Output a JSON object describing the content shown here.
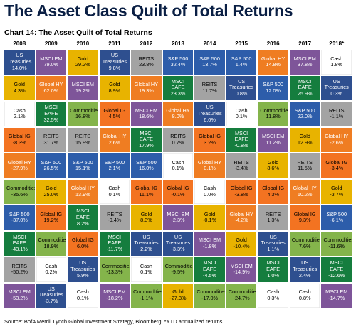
{
  "title": "The Asset Class Quilt of Total Returns",
  "subtitle": "Chart 14: The Asset Quilt of Total Returns",
  "source": "Source: BofA Merrill Lynch Global Investment Strategy, Bloomberg. *YTD annualized returns",
  "colors": {
    "US Treasuries": "#2e4f8f",
    "MSCI EM": "#7e5599",
    "Gold": "#e8b300",
    "Cash": "#ffffff",
    "Global IG": "#f37321",
    "Global HY": "#ef7d22",
    "REITS": "#a3a3a3",
    "S&P 500": "#2d5daa",
    "MSCI EAFE": "#157d3e",
    "Commodities": "#84b44b"
  },
  "chart_data": {
    "type": "table",
    "years": [
      "2008",
      "2009",
      "2010",
      "2011",
      "2012",
      "2013",
      "2014",
      "2015",
      "2016",
      "2017",
      "2018*"
    ],
    "columns": [
      [
        {
          "asset": "US Treasuries",
          "ret": "14.0%"
        },
        {
          "asset": "Gold",
          "ret": "4.3%"
        },
        {
          "asset": "Cash",
          "ret": "2.1%"
        },
        {
          "asset": "Global IG",
          "ret": "-8.3%"
        },
        {
          "asset": "Global HY",
          "ret": "-27.9%"
        },
        {
          "asset": "Commodities",
          "ret": "-35.6%"
        },
        {
          "asset": "S&P 500",
          "ret": "-37.0%"
        },
        {
          "asset": "MSCI EAFE",
          "ret": "-43.1%"
        },
        {
          "asset": "REITS",
          "ret": "-50.2%"
        },
        {
          "asset": "MSCI EM",
          "ret": "-53.2%"
        }
      ],
      [
        {
          "asset": "MSCI EM",
          "ret": "79.0%"
        },
        {
          "asset": "Global HY",
          "ret": "62.0%"
        },
        {
          "asset": "MSCI EAFE",
          "ret": "32.5%"
        },
        {
          "asset": "REITS",
          "ret": "31.7%"
        },
        {
          "asset": "S&P 500",
          "ret": "26.5%"
        },
        {
          "asset": "Gold",
          "ret": "25.0%"
        },
        {
          "asset": "Global IG",
          "ret": "19.2%"
        },
        {
          "asset": "Commodities",
          "ret": "18.9%"
        },
        {
          "asset": "Cash",
          "ret": "0.2%"
        },
        {
          "asset": "US Treasuries",
          "ret": "-3.7%"
        }
      ],
      [
        {
          "asset": "Gold",
          "ret": "29.2%"
        },
        {
          "asset": "MSCI EM",
          "ret": "19.2%"
        },
        {
          "asset": "Commodities",
          "ret": "16.8%"
        },
        {
          "asset": "REITS",
          "ret": "15.9%"
        },
        {
          "asset": "S&P 500",
          "ret": "15.1%"
        },
        {
          "asset": "Global HY",
          "ret": "13.9%"
        },
        {
          "asset": "MSCI EAFE",
          "ret": "8.2%"
        },
        {
          "asset": "Global IG",
          "ret": "6.0%"
        },
        {
          "asset": "US Treasuries",
          "ret": "5.9%"
        },
        {
          "asset": "Cash",
          "ret": "0.1%"
        }
      ],
      [
        {
          "asset": "US Treasuries",
          "ret": "9.8%"
        },
        {
          "asset": "Gold",
          "ret": "8.9%"
        },
        {
          "asset": "Global IG",
          "ret": "4.5%"
        },
        {
          "asset": "Global HY",
          "ret": "2.6%"
        },
        {
          "asset": "S&P 500",
          "ret": "2.1%"
        },
        {
          "asset": "Cash",
          "ret": "0.1%"
        },
        {
          "asset": "REITS",
          "ret": "-9.4%"
        },
        {
          "asset": "MSCI EAFE",
          "ret": "-11.7%"
        },
        {
          "asset": "Commodities",
          "ret": "-13.3%"
        },
        {
          "asset": "MSCI EM",
          "ret": "-18.2%"
        }
      ],
      [
        {
          "asset": "REITS",
          "ret": "23.8%"
        },
        {
          "asset": "Global HY",
          "ret": "19.3%"
        },
        {
          "asset": "MSCI EM",
          "ret": "18.6%"
        },
        {
          "asset": "MSCI EAFE",
          "ret": "17.9%"
        },
        {
          "asset": "S&P 500",
          "ret": "16.0%"
        },
        {
          "asset": "Global IG",
          "ret": "11.1%"
        },
        {
          "asset": "Gold",
          "ret": "8.3%"
        },
        {
          "asset": "US Treasuries",
          "ret": "2.2%"
        },
        {
          "asset": "Cash",
          "ret": "0.1%"
        },
        {
          "asset": "Commodities",
          "ret": "-1.1%"
        }
      ],
      [
        {
          "asset": "S&P 500",
          "ret": "32.4%"
        },
        {
          "asset": "MSCI EAFE",
          "ret": "23.3%"
        },
        {
          "asset": "Global HY",
          "ret": "8.0%"
        },
        {
          "asset": "REITS",
          "ret": "0.7%"
        },
        {
          "asset": "Cash",
          "ret": "0.1%"
        },
        {
          "asset": "Global IG",
          "ret": "-0.1%"
        },
        {
          "asset": "MSCI EM",
          "ret": "-2.3%"
        },
        {
          "asset": "US Treasuries",
          "ret": "-3.3%"
        },
        {
          "asset": "Commodities",
          "ret": "-9.5%"
        },
        {
          "asset": "Gold",
          "ret": "-27.3%"
        }
      ],
      [
        {
          "asset": "S&P 500",
          "ret": "13.7%"
        },
        {
          "asset": "REITS",
          "ret": "11.7%"
        },
        {
          "asset": "US Treasuries",
          "ret": "6.0%"
        },
        {
          "asset": "Global IG",
          "ret": "3.2%"
        },
        {
          "asset": "Global HY",
          "ret": "0.1%"
        },
        {
          "asset": "Cash",
          "ret": "0.0%"
        },
        {
          "asset": "Gold",
          "ret": "-0.1%"
        },
        {
          "asset": "MSCI EM",
          "ret": "-1.8%"
        },
        {
          "asset": "MSCI EAFE",
          "ret": "-4.5%"
        },
        {
          "asset": "Commodities",
          "ret": "-17.0%"
        }
      ],
      [
        {
          "asset": "S&P 500",
          "ret": "1.4%"
        },
        {
          "asset": "US Treasuries",
          "ret": "0.8%"
        },
        {
          "asset": "Cash",
          "ret": "0.1%"
        },
        {
          "asset": "MSCI EAFE",
          "ret": "-0.8%"
        },
        {
          "asset": "REITS",
          "ret": "-3.4%"
        },
        {
          "asset": "Global IG",
          "ret": "-3.8%"
        },
        {
          "asset": "Global HY",
          "ret": "-4.2%"
        },
        {
          "asset": "Gold",
          "ret": "-10.4%"
        },
        {
          "asset": "MSCI EM",
          "ret": "-14.9%"
        },
        {
          "asset": "Commodities",
          "ret": "-24.7%"
        }
      ],
      [
        {
          "asset": "Global HY",
          "ret": "14.8%"
        },
        {
          "asset": "S&P 500",
          "ret": "12.0%"
        },
        {
          "asset": "Commodities",
          "ret": "11.8%"
        },
        {
          "asset": "MSCI EM",
          "ret": "11.2%"
        },
        {
          "asset": "Gold",
          "ret": "8.6%"
        },
        {
          "asset": "Global IG",
          "ret": "4.3%"
        },
        {
          "asset": "REITS",
          "ret": "1.3%"
        },
        {
          "asset": "US Treasuries",
          "ret": "1.1%"
        },
        {
          "asset": "MSCI EAFE",
          "ret": "1.0%"
        },
        {
          "asset": "Cash",
          "ret": "0.3%"
        }
      ],
      [
        {
          "asset": "MSCI EM",
          "ret": "37.8%"
        },
        {
          "asset": "MSCI EAFE",
          "ret": "25.9%"
        },
        {
          "asset": "S&P 500",
          "ret": "22.0%"
        },
        {
          "asset": "Gold",
          "ret": "12.9%"
        },
        {
          "asset": "REITS",
          "ret": "11.5%"
        },
        {
          "asset": "Global HY",
          "ret": "10.2%"
        },
        {
          "asset": "Global IG",
          "ret": "9.3%"
        },
        {
          "asset": "Commodities",
          "ret": "7.6%"
        },
        {
          "asset": "US Treasuries",
          "ret": "2.4%"
        },
        {
          "asset": "Cash",
          "ret": "0.8%"
        }
      ],
      [
        {
          "asset": "Cash",
          "ret": "1.8%"
        },
        {
          "asset": "US Treasuries",
          "ret": "0.3%"
        },
        {
          "asset": "REITS",
          "ret": "-1.1%"
        },
        {
          "asset": "Global HY",
          "ret": "-2.6%"
        },
        {
          "asset": "Global IG",
          "ret": "-3.4%"
        },
        {
          "asset": "Gold",
          "ret": "-3.7%"
        },
        {
          "asset": "S&P 500",
          "ret": "-6.1%"
        },
        {
          "asset": "Commodities",
          "ret": "-11.6%"
        },
        {
          "asset": "MSCI EAFE",
          "ret": "-12.6%"
        },
        {
          "asset": "MSCI EM",
          "ret": "-14.7%"
        }
      ]
    ]
  }
}
